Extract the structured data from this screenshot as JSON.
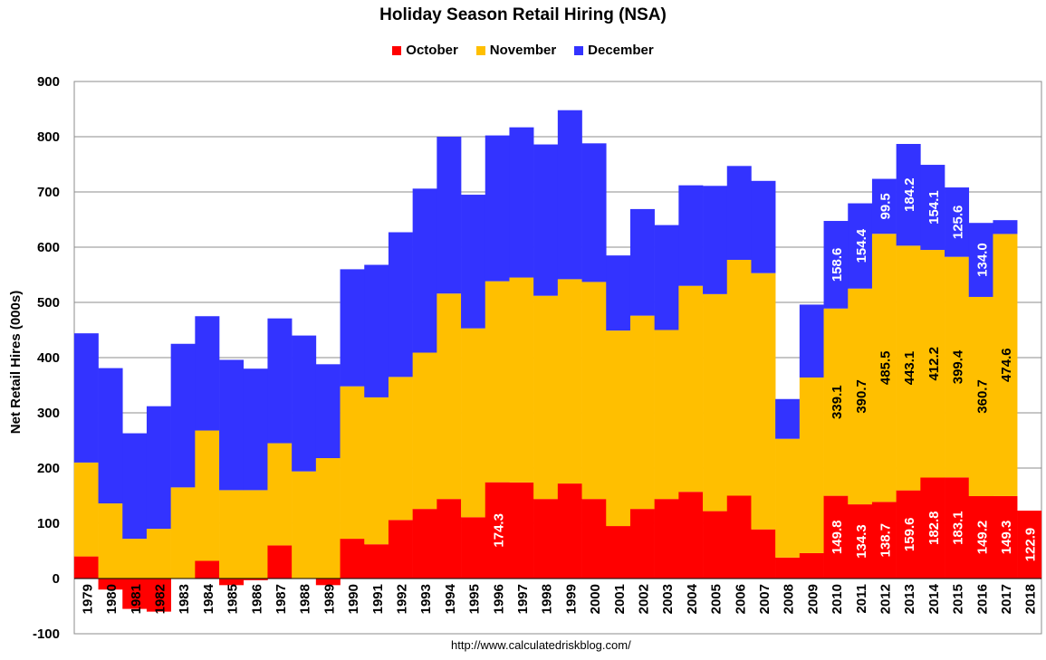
{
  "chart_data": {
    "type": "bar",
    "stacked": true,
    "title": "Holiday Season Retail Hiring (NSA)",
    "ylabel": "Net Retail Hires (000s)",
    "xlabel": "",
    "ylim": [
      -100,
      900
    ],
    "yticks": [
      -100,
      0,
      100,
      200,
      300,
      400,
      500,
      600,
      700,
      800,
      900
    ],
    "grid": true,
    "legend_position": "top",
    "source": "http://www.calculatedriskblog.com/",
    "categories": [
      "1979",
      "1980",
      "1981",
      "1982",
      "1983",
      "1984",
      "1985",
      "1986",
      "1987",
      "1988",
      "1989",
      "1990",
      "1991",
      "1992",
      "1993",
      "1994",
      "1995",
      "1996",
      "1997",
      "1998",
      "1999",
      "2000",
      "2001",
      "2002",
      "2003",
      "2004",
      "2005",
      "2006",
      "2007",
      "2008",
      "2009",
      "2010",
      "2011",
      "2012",
      "2013",
      "2014",
      "2015",
      "2016",
      "2017",
      "2018"
    ],
    "series": [
      {
        "name": "October",
        "color": "#ff0000",
        "values": [
          40,
          -20,
          -55,
          -60,
          0,
          32,
          -12,
          -3,
          60,
          0,
          -12,
          72,
          62,
          106,
          126,
          144,
          111,
          174.3,
          174,
          144,
          172,
          144,
          95,
          126,
          144,
          157,
          122,
          150,
          89,
          38,
          46,
          149.8,
          134.3,
          138.7,
          159.6,
          182.8,
          183.1,
          149.2,
          149.3,
          122.9
        ],
        "labels": [
          null,
          null,
          null,
          null,
          null,
          null,
          null,
          null,
          null,
          null,
          null,
          null,
          null,
          null,
          null,
          null,
          null,
          "174.3",
          null,
          null,
          null,
          null,
          null,
          null,
          null,
          null,
          null,
          null,
          null,
          null,
          null,
          "149.8",
          "134.3",
          "138.7",
          "159.6",
          "182.8",
          "183.1",
          "149.2",
          "149.3",
          "122.9"
        ]
      },
      {
        "name": "November",
        "color": "#ffbf00",
        "values": [
          170,
          136,
          72,
          90,
          165,
          236,
          160,
          160,
          185,
          194,
          218,
          276,
          266,
          259,
          283,
          372,
          342,
          364,
          371,
          368,
          370,
          393,
          354,
          350,
          306,
          373,
          393,
          427,
          464,
          215,
          318,
          339.1,
          390.7,
          485.5,
          443.1,
          412.2,
          399.4,
          360.7,
          474.6,
          0
        ],
        "labels": [
          null,
          null,
          null,
          null,
          null,
          null,
          null,
          null,
          null,
          null,
          null,
          null,
          null,
          null,
          null,
          null,
          null,
          null,
          null,
          null,
          null,
          null,
          null,
          null,
          null,
          null,
          null,
          null,
          null,
          null,
          null,
          "339.1",
          "390.7",
          "485.5",
          "443.1",
          "412.2",
          "399.4",
          "360.7",
          "474.6",
          null
        ]
      },
      {
        "name": "December",
        "color": "#3333ff",
        "values": [
          234,
          245,
          191,
          222,
          260,
          207,
          236,
          220,
          226,
          246,
          170,
          212,
          240,
          262,
          297,
          284,
          242,
          264,
          272,
          274,
          306,
          251,
          136,
          193,
          190,
          182,
          196,
          170,
          167,
          72,
          132,
          158.6,
          154.4,
          99.5,
          184.2,
          154.1,
          125.6,
          134.0,
          25,
          0
        ],
        "labels": [
          null,
          null,
          null,
          null,
          null,
          null,
          null,
          null,
          null,
          null,
          null,
          null,
          null,
          null,
          null,
          null,
          null,
          null,
          null,
          null,
          null,
          null,
          null,
          null,
          null,
          null,
          null,
          null,
          null,
          null,
          null,
          "158.6",
          "154.4",
          "99.5",
          "184.2",
          "154.1",
          "125.6",
          "134.0",
          null,
          null
        ]
      }
    ]
  }
}
